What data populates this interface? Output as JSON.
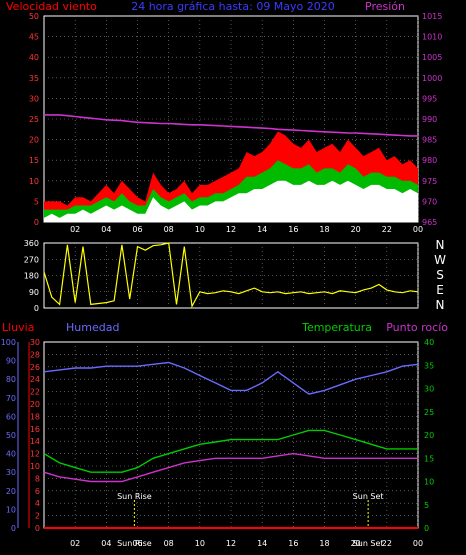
{
  "title": "24 hora gráfica hasta: 09 Mayo 2020",
  "colors": {
    "wind_gust": "#ff0000",
    "wind_avg": "#00bb00",
    "wind_low": "#ffffff",
    "pressure": "#cc33cc",
    "direction": "#ffff00",
    "rain": "#ff0000",
    "humidity": "#6a6aff",
    "temperature": "#00cc00",
    "dewpoint": "#cc33cc",
    "frame": "#ffffff",
    "background": "#000000",
    "sun": "#ffff00"
  },
  "x_tick_labels": [
    "02",
    "04",
    "06",
    "08",
    "10",
    "12",
    "14",
    "16",
    "18",
    "20",
    "22",
    "00"
  ],
  "chart_data": [
    {
      "type": "line",
      "labels": {
        "left": "Velocidad viento",
        "right": "Presión"
      },
      "x_hours": [
        0,
        0.5,
        1,
        1.5,
        2,
        2.5,
        3,
        3.5,
        4,
        4.5,
        5,
        5.5,
        6,
        6.5,
        7,
        7.5,
        8,
        8.5,
        9,
        9.5,
        10,
        10.5,
        11,
        11.5,
        12,
        12.5,
        13,
        13.5,
        14,
        14.5,
        15,
        15.5,
        16,
        16.5,
        17,
        17.5,
        18,
        18.5,
        19,
        19.5,
        20,
        20.5,
        21,
        21.5,
        22,
        22.5,
        23,
        23.5,
        24
      ],
      "left_axis": {
        "ylim": [
          0,
          50
        ],
        "ticks": [
          0,
          5,
          10,
          15,
          20,
          25,
          30,
          35,
          40,
          45,
          50
        ]
      },
      "right_axis": {
        "ylim": [
          965,
          1015
        ],
        "ticks": [
          965,
          970,
          975,
          980,
          985,
          990,
          995,
          1000,
          1005,
          1010,
          1015
        ]
      },
      "series": [
        {
          "role": "gust",
          "axis": "left",
          "values": [
            5,
            5,
            5,
            4,
            6,
            6,
            5,
            7,
            9,
            7,
            10,
            8,
            6,
            5,
            12,
            9,
            7,
            8,
            10,
            7,
            9,
            9,
            10,
            11,
            12,
            13,
            17,
            16,
            17,
            19,
            22,
            21,
            19,
            18,
            20,
            17,
            18,
            19,
            17,
            20,
            18,
            16,
            17,
            18,
            15,
            16,
            14,
            15,
            13
          ]
        },
        {
          "role": "average",
          "axis": "left",
          "values": [
            3,
            3,
            3,
            3,
            4,
            4,
            4,
            5,
            6,
            5,
            7,
            5,
            4,
            4,
            8,
            6,
            5,
            6,
            7,
            5,
            6,
            6,
            7,
            7,
            8,
            9,
            11,
            11,
            12,
            13,
            15,
            14,
            13,
            13,
            14,
            12,
            13,
            13,
            12,
            14,
            13,
            11,
            12,
            12,
            11,
            11,
            10,
            10,
            9
          ]
        },
        {
          "role": "low",
          "axis": "left",
          "values": [
            1,
            2,
            1,
            2,
            2,
            3,
            2,
            3,
            4,
            3,
            4,
            3,
            2,
            2,
            6,
            4,
            3,
            4,
            5,
            3,
            4,
            4,
            5,
            5,
            6,
            7,
            7,
            8,
            8,
            9,
            10,
            10,
            9,
            9,
            10,
            9,
            9,
            10,
            9,
            10,
            9,
            8,
            9,
            9,
            8,
            8,
            7,
            8,
            7
          ]
        },
        {
          "role": "pressure",
          "axis": "right",
          "values": [
            991,
            991,
            991,
            990.8,
            990.6,
            990.4,
            990.2,
            990,
            989.8,
            989.7,
            989.6,
            989.4,
            989.2,
            989.1,
            989,
            988.9,
            988.9,
            988.8,
            988.7,
            988.6,
            988.6,
            988.5,
            988.4,
            988.3,
            988.2,
            988.1,
            988,
            987.9,
            987.8,
            987.7,
            987.5,
            987.4,
            987.3,
            987.2,
            987.1,
            987,
            986.9,
            986.8,
            986.7,
            986.6,
            986.6,
            986.5,
            986.4,
            986.3,
            986.2,
            986.1,
            986,
            985.9,
            985.9
          ]
        }
      ]
    },
    {
      "type": "line",
      "labels": {
        "right": [
          "N",
          "W",
          "S",
          "E",
          "N"
        ]
      },
      "x_hours": [
        0,
        0.5,
        1,
        1.5,
        2,
        2.5,
        3,
        3.5,
        4,
        4.5,
        5,
        5.5,
        6,
        6.5,
        7,
        7.5,
        8,
        8.5,
        9,
        9.5,
        10,
        10.5,
        11,
        11.5,
        12,
        12.5,
        13,
        13.5,
        14,
        14.5,
        15,
        15.5,
        16,
        16.5,
        17,
        17.5,
        18,
        18.5,
        19,
        19.5,
        20,
        20.5,
        21,
        21.5,
        22,
        22.5,
        23,
        23.5,
        24
      ],
      "left_axis": {
        "ylim": [
          0,
          360
        ],
        "ticks": [
          0,
          90,
          180,
          270,
          360
        ]
      },
      "series": [
        {
          "role": "direction",
          "values": [
            200,
            60,
            20,
            350,
            30,
            340,
            20,
            25,
            30,
            40,
            350,
            50,
            340,
            320,
            345,
            350,
            360,
            20,
            340,
            10,
            90,
            80,
            85,
            95,
            90,
            80,
            95,
            110,
            90,
            85,
            90,
            80,
            85,
            90,
            80,
            85,
            90,
            80,
            95,
            90,
            85,
            100,
            110,
            130,
            100,
            90,
            85,
            95,
            90
          ]
        }
      ]
    },
    {
      "type": "line",
      "labels": {
        "left_outer": "Lluvia",
        "left_inner": "Humedad",
        "right_inner": "Temperatura",
        "right_outer": "Punto rocío"
      },
      "x_hours": [
        0,
        1,
        2,
        3,
        4,
        5,
        6,
        7,
        8,
        9,
        10,
        11,
        12,
        13,
        14,
        15,
        16,
        17,
        18,
        19,
        20,
        21,
        22,
        23,
        24
      ],
      "axes": {
        "rain": {
          "ylim": [
            0,
            30
          ],
          "ticks": [
            0,
            2,
            4,
            6,
            8,
            10,
            12,
            14,
            16,
            18,
            20,
            22,
            24,
            26,
            28,
            30
          ]
        },
        "humidity": {
          "ylim": [
            0,
            100
          ],
          "ticks": [
            0,
            10,
            20,
            30,
            40,
            50,
            60,
            70,
            80,
            90,
            100
          ]
        },
        "temperature": {
          "ylim": [
            0,
            40
          ],
          "ticks": [
            0,
            5,
            10,
            15,
            20,
            25,
            30,
            35,
            40
          ]
        }
      },
      "annotations": [
        {
          "label": "Sun Rise",
          "hour": 5.8
        },
        {
          "label": "Sun Set",
          "hour": 20.8
        }
      ],
      "series": [
        {
          "role": "rain",
          "axis": "rain",
          "values": [
            0,
            0,
            0,
            0,
            0,
            0,
            0,
            0,
            0,
            0,
            0,
            0,
            0,
            0,
            0,
            0,
            0,
            0,
            0,
            0,
            0,
            0,
            0,
            0,
            0
          ]
        },
        {
          "role": "humidity",
          "axis": "humidity",
          "values": [
            84,
            85,
            86,
            86,
            87,
            87,
            87,
            88,
            89,
            86,
            82,
            78,
            74,
            74,
            78,
            84,
            78,
            72,
            74,
            77,
            80,
            82,
            84,
            87,
            88
          ]
        },
        {
          "role": "temperature",
          "axis": "temperature",
          "values": [
            16,
            14,
            13,
            12,
            12,
            12,
            13,
            15,
            16,
            17,
            18,
            18.5,
            19,
            19,
            19,
            19,
            20,
            21,
            21,
            20,
            19,
            18,
            17,
            17,
            17
          ]
        },
        {
          "role": "dewpoint",
          "axis": "temperature",
          "values": [
            12,
            11,
            10.5,
            10,
            10,
            10,
            11,
            12,
            13,
            14,
            14.5,
            15,
            15,
            15,
            15,
            15.5,
            16,
            15.5,
            15,
            15,
            15,
            15,
            15,
            15,
            15
          ]
        }
      ]
    }
  ]
}
